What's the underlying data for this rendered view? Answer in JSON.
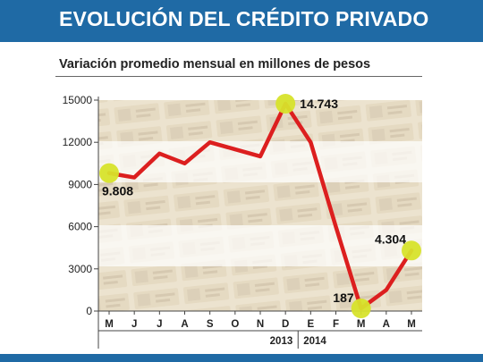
{
  "title": "EVOLUCIÓN DEL CRÉDITO PRIVADO",
  "subtitle": "Variación promedio mensual en millones de pesos",
  "colors": {
    "header": "#1f6aa5",
    "line": "#dc1f1f",
    "highlight": "#d7e32b"
  },
  "chart_data": {
    "type": "line",
    "title": "EVOLUCIÓN DEL CRÉDITO PRIVADO",
    "subtitle": "Variación promedio mensual en millones de pesos",
    "xlabel": "",
    "ylabel": "",
    "categories": [
      "M",
      "J",
      "J",
      "A",
      "S",
      "O",
      "N",
      "D",
      "E",
      "F",
      "M",
      "A",
      "M"
    ],
    "years": [
      {
        "label": "2013",
        "from": 0,
        "to": 7
      },
      {
        "label": "2014",
        "from": 8,
        "to": 12
      }
    ],
    "ylim": [
      0,
      15000
    ],
    "yticks": [
      0,
      3000,
      6000,
      9000,
      12000,
      15000
    ],
    "grid": false,
    "legend": "none",
    "series": [
      {
        "values": [
          9808,
          9500,
          11200,
          10500,
          12000,
          11500,
          11000,
          14743,
          12000,
          6000,
          187,
          1500,
          4304
        ]
      }
    ],
    "annotations": [
      {
        "index": 0,
        "text": "9.808"
      },
      {
        "index": 7,
        "text": "14.743"
      },
      {
        "index": 10,
        "text": "187"
      },
      {
        "index": 12,
        "text": "4.304"
      }
    ]
  }
}
